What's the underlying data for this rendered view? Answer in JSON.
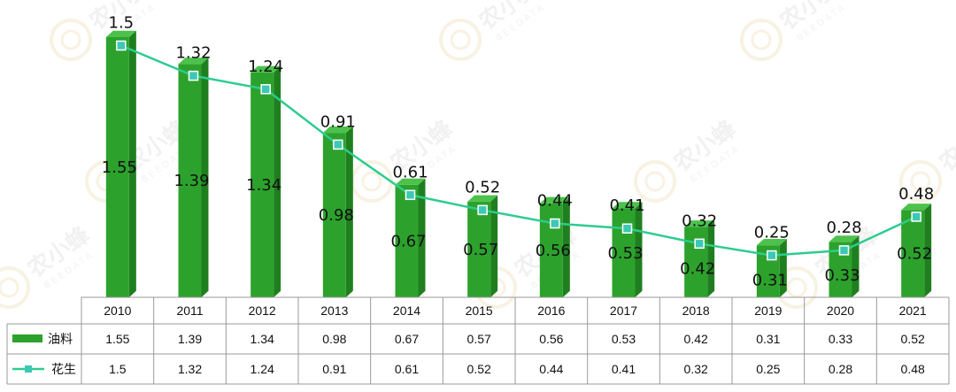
{
  "chart_data": {
    "type": "bar",
    "categories": [
      "2010",
      "2011",
      "2012",
      "2013",
      "2014",
      "2015",
      "2016",
      "2017",
      "2018",
      "2019",
      "2020",
      "2021"
    ],
    "series": [
      {
        "name": "油料",
        "kind": "bar",
        "color": "#2ca22c",
        "values": [
          1.55,
          1.39,
          1.34,
          0.98,
          0.67,
          0.57,
          0.56,
          0.53,
          0.42,
          0.31,
          0.33,
          0.52
        ]
      },
      {
        "name": "花生",
        "kind": "line",
        "color": "#2ecc8f",
        "values": [
          1.5,
          1.32,
          1.24,
          0.91,
          0.61,
          0.52,
          0.44,
          0.41,
          0.32,
          0.25,
          0.28,
          0.48
        ]
      }
    ],
    "data_table": true,
    "grid": false
  },
  "watermark": {
    "text": "农小蜂",
    "subtext": "BEEDATA"
  }
}
